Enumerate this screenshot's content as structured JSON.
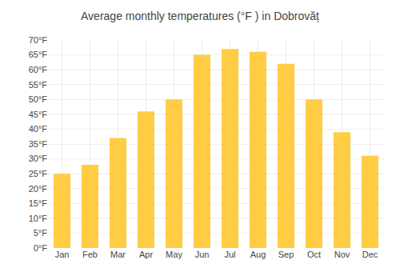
{
  "chart_data": {
    "type": "bar",
    "title": "Average monthly temperatures (°F ) in Dobrovăț",
    "categories": [
      "Jan",
      "Feb",
      "Mar",
      "Apr",
      "May",
      "Jun",
      "Jul",
      "Aug",
      "Sep",
      "Oct",
      "Nov",
      "Dec"
    ],
    "values": [
      25,
      28,
      37,
      46,
      50,
      65,
      67,
      66,
      62,
      50,
      39,
      31
    ],
    "color": "#FFCC44",
    "ylim": [
      0,
      70
    ],
    "yticks": [
      {
        "value": 0,
        "label": "0°F"
      },
      {
        "value": 5,
        "label": "5°F"
      },
      {
        "value": 10,
        "label": "10°F"
      },
      {
        "value": 15,
        "label": "15°F"
      },
      {
        "value": 20,
        "label": "20°F"
      },
      {
        "value": 25,
        "label": "25°F"
      },
      {
        "value": 30,
        "label": "30°F"
      },
      {
        "value": 35,
        "label": "35°F"
      },
      {
        "value": 40,
        "label": "40°F"
      },
      {
        "value": 45,
        "label": "45°F"
      },
      {
        "value": 50,
        "label": "50°F"
      },
      {
        "value": 55,
        "label": "55°F"
      },
      {
        "value": 60,
        "label": "60°F"
      },
      {
        "value": 65,
        "label": "65°F"
      },
      {
        "value": 70,
        "label": "70°F"
      }
    ],
    "grid": true
  }
}
